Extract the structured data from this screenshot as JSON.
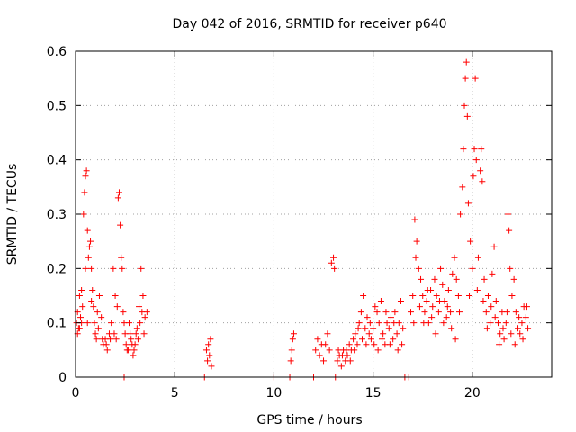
{
  "chart_data": {
    "type": "scatter",
    "title": "Day 042 of 2016, SRMTID for receiver p640",
    "xlabel": "GPS time / hours",
    "ylabel": "SRMTID / TECUs",
    "xlim": [
      0,
      24
    ],
    "ylim": [
      0,
      0.6
    ],
    "xticks": [
      0,
      5,
      10,
      15,
      20
    ],
    "xtick_labels": [
      "0",
      "5",
      "10",
      "15",
      "20"
    ],
    "yticks": [
      0,
      0.1,
      0.2,
      0.3,
      0.4,
      0.5,
      0.6
    ],
    "ytick_labels": [
      "0",
      "0.1",
      "0.2",
      "0.3",
      "0.4",
      "0.5",
      "0.6"
    ],
    "grid": true,
    "marker": "+",
    "color": "#ff0000",
    "series": [
      {
        "name": "SRMTID",
        "points": [
          [
            0.05,
            0.1
          ],
          [
            0.1,
            0.12
          ],
          [
            0.15,
            0.09
          ],
          [
            0.2,
            0.15
          ],
          [
            0.25,
            0.11
          ],
          [
            0.3,
            0.1
          ],
          [
            0.35,
            0.13
          ],
          [
            0.4,
            0.3
          ],
          [
            0.45,
            0.34
          ],
          [
            0.5,
            0.37
          ],
          [
            0.55,
            0.38
          ],
          [
            0.6,
            0.27
          ],
          [
            0.65,
            0.22
          ],
          [
            0.7,
            0.24
          ],
          [
            0.75,
            0.25
          ],
          [
            0.8,
            0.2
          ],
          [
            0.85,
            0.16
          ],
          [
            0.9,
            0.13
          ],
          [
            0.95,
            0.1
          ],
          [
            1.0,
            0.08
          ],
          [
            1.1,
            0.12
          ],
          [
            1.2,
            0.15
          ],
          [
            1.3,
            0.11
          ],
          [
            1.4,
            0.06
          ],
          [
            1.5,
            0.07
          ],
          [
            1.6,
            0.05
          ],
          [
            1.7,
            0.08
          ],
          [
            1.8,
            0.1
          ],
          [
            1.9,
            0.2
          ],
          [
            2.0,
            0.15
          ],
          [
            2.1,
            0.13
          ],
          [
            2.15,
            0.33
          ],
          [
            2.2,
            0.34
          ],
          [
            2.25,
            0.28
          ],
          [
            2.3,
            0.22
          ],
          [
            2.35,
            0.2
          ],
          [
            2.4,
            0.12
          ],
          [
            2.5,
            0.08
          ],
          [
            2.6,
            0.05
          ],
          [
            2.7,
            0.1
          ],
          [
            2.8,
            0.07
          ],
          [
            2.9,
            0.04
          ],
          [
            3.0,
            0.06
          ],
          [
            3.1,
            0.09
          ],
          [
            3.2,
            0.13
          ],
          [
            3.3,
            0.2
          ],
          [
            3.4,
            0.15
          ],
          [
            3.5,
            0.11
          ],
          [
            3.6,
            0.12
          ],
          [
            0.1,
            0.08
          ],
          [
            0.2,
            0.09
          ],
          [
            0.3,
            0.16
          ],
          [
            0.5,
            0.2
          ],
          [
            0.6,
            0.1
          ],
          [
            0.8,
            0.14
          ],
          [
            1.05,
            0.07
          ],
          [
            1.15,
            0.09
          ],
          [
            1.35,
            0.07
          ],
          [
            1.55,
            0.06
          ],
          [
            1.75,
            0.07
          ],
          [
            1.95,
            0.08
          ],
          [
            2.05,
            0.07
          ],
          [
            2.45,
            0.1
          ],
          [
            2.55,
            0.06
          ],
          [
            2.65,
            0.05
          ],
          [
            2.75,
            0.08
          ],
          [
            2.85,
            0.06
          ],
          [
            2.95,
            0.05
          ],
          [
            3.05,
            0.08
          ],
          [
            3.15,
            0.07
          ],
          [
            3.25,
            0.1
          ],
          [
            3.35,
            0.12
          ],
          [
            3.45,
            0.08
          ],
          [
            2.45,
            0.0
          ],
          [
            6.5,
            0.0
          ],
          [
            6.6,
            0.05
          ],
          [
            6.65,
            0.03
          ],
          [
            6.7,
            0.06
          ],
          [
            6.75,
            0.04
          ],
          [
            6.8,
            0.07
          ],
          [
            6.85,
            0.02
          ],
          [
            10.0,
            0.0
          ],
          [
            10.8,
            0.0
          ],
          [
            10.85,
            0.03
          ],
          [
            10.9,
            0.05
          ],
          [
            10.95,
            0.07
          ],
          [
            11.0,
            0.08
          ],
          [
            12.0,
            0.0
          ],
          [
            12.1,
            0.05
          ],
          [
            12.2,
            0.07
          ],
          [
            12.3,
            0.04
          ],
          [
            12.4,
            0.06
          ],
          [
            12.5,
            0.03
          ],
          [
            12.6,
            0.06
          ],
          [
            12.7,
            0.08
          ],
          [
            12.8,
            0.05
          ],
          [
            12.9,
            0.21
          ],
          [
            13.0,
            0.22
          ],
          [
            13.05,
            0.2
          ],
          [
            13.1,
            0.0
          ],
          [
            13.2,
            0.03
          ],
          [
            13.3,
            0.04
          ],
          [
            13.4,
            0.02
          ],
          [
            13.5,
            0.05
          ],
          [
            13.6,
            0.03
          ],
          [
            13.7,
            0.04
          ],
          [
            13.8,
            0.06
          ],
          [
            13.9,
            0.05
          ],
          [
            14.0,
            0.07
          ],
          [
            14.1,
            0.08
          ],
          [
            14.2,
            0.06
          ],
          [
            14.3,
            0.1
          ],
          [
            14.4,
            0.12
          ],
          [
            14.5,
            0.15
          ],
          [
            14.6,
            0.09
          ],
          [
            14.7,
            0.11
          ],
          [
            14.8,
            0.08
          ],
          [
            14.9,
            0.07
          ],
          [
            15.0,
            0.09
          ],
          [
            15.1,
            0.13
          ],
          [
            15.2,
            0.12
          ],
          [
            15.3,
            0.1
          ],
          [
            15.4,
            0.14
          ],
          [
            15.5,
            0.08
          ],
          [
            15.6,
            0.06
          ],
          [
            15.7,
            0.1
          ],
          [
            15.8,
            0.09
          ],
          [
            15.9,
            0.11
          ],
          [
            16.0,
            0.07
          ],
          [
            16.1,
            0.12
          ],
          [
            16.2,
            0.08
          ],
          [
            16.3,
            0.1
          ],
          [
            16.4,
            0.14
          ],
          [
            16.5,
            0.09
          ],
          [
            16.6,
            0.0
          ],
          [
            16.8,
            0.0
          ],
          [
            13.25,
            0.05
          ],
          [
            13.45,
            0.04
          ],
          [
            13.65,
            0.05
          ],
          [
            13.85,
            0.03
          ],
          [
            14.05,
            0.05
          ],
          [
            14.25,
            0.09
          ],
          [
            14.45,
            0.07
          ],
          [
            14.65,
            0.06
          ],
          [
            14.85,
            0.1
          ],
          [
            15.05,
            0.06
          ],
          [
            15.25,
            0.05
          ],
          [
            15.45,
            0.07
          ],
          [
            15.65,
            0.12
          ],
          [
            15.85,
            0.06
          ],
          [
            16.05,
            0.1
          ],
          [
            16.25,
            0.05
          ],
          [
            16.45,
            0.06
          ],
          [
            16.9,
            0.12
          ],
          [
            17.0,
            0.15
          ],
          [
            17.1,
            0.29
          ],
          [
            17.2,
            0.25
          ],
          [
            17.3,
            0.2
          ],
          [
            17.4,
            0.18
          ],
          [
            17.5,
            0.15
          ],
          [
            17.6,
            0.12
          ],
          [
            17.7,
            0.14
          ],
          [
            17.8,
            0.1
          ],
          [
            17.9,
            0.16
          ],
          [
            18.0,
            0.13
          ],
          [
            18.1,
            0.18
          ],
          [
            18.2,
            0.15
          ],
          [
            18.3,
            0.12
          ],
          [
            18.4,
            0.2
          ],
          [
            18.5,
            0.17
          ],
          [
            18.6,
            0.14
          ],
          [
            18.7,
            0.11
          ],
          [
            18.8,
            0.16
          ],
          [
            18.9,
            0.12
          ],
          [
            19.0,
            0.19
          ],
          [
            19.1,
            0.22
          ],
          [
            19.2,
            0.18
          ],
          [
            19.3,
            0.15
          ],
          [
            19.4,
            0.3
          ],
          [
            19.5,
            0.35
          ],
          [
            19.55,
            0.42
          ],
          [
            19.6,
            0.5
          ],
          [
            19.65,
            0.55
          ],
          [
            19.7,
            0.58
          ],
          [
            19.75,
            0.48
          ],
          [
            19.8,
            0.32
          ],
          [
            19.9,
            0.25
          ],
          [
            20.0,
            0.2
          ],
          [
            20.05,
            0.37
          ],
          [
            20.1,
            0.42
          ],
          [
            20.15,
            0.55
          ],
          [
            20.2,
            0.4
          ],
          [
            20.3,
            0.22
          ],
          [
            20.4,
            0.38
          ],
          [
            20.45,
            0.42
          ],
          [
            20.5,
            0.36
          ],
          [
            20.6,
            0.18
          ],
          [
            20.7,
            0.12
          ],
          [
            20.8,
            0.15
          ],
          [
            20.9,
            0.1
          ],
          [
            21.0,
            0.19
          ],
          [
            21.1,
            0.24
          ],
          [
            21.2,
            0.14
          ],
          [
            21.3,
            0.1
          ],
          [
            21.4,
            0.08
          ],
          [
            21.5,
            0.12
          ],
          [
            21.6,
            0.07
          ],
          [
            21.7,
            0.1
          ],
          [
            21.8,
            0.3
          ],
          [
            21.85,
            0.27
          ],
          [
            21.9,
            0.2
          ],
          [
            22.0,
            0.15
          ],
          [
            22.1,
            0.18
          ],
          [
            22.2,
            0.12
          ],
          [
            22.3,
            0.09
          ],
          [
            22.4,
            0.08
          ],
          [
            22.5,
            0.1
          ],
          [
            22.6,
            0.13
          ],
          [
            22.7,
            0.11
          ],
          [
            22.8,
            0.09
          ],
          [
            17.05,
            0.1
          ],
          [
            17.15,
            0.22
          ],
          [
            17.35,
            0.13
          ],
          [
            17.55,
            0.1
          ],
          [
            17.75,
            0.16
          ],
          [
            17.95,
            0.11
          ],
          [
            18.15,
            0.08
          ],
          [
            18.35,
            0.14
          ],
          [
            18.55,
            0.1
          ],
          [
            18.75,
            0.13
          ],
          [
            18.95,
            0.09
          ],
          [
            19.15,
            0.07
          ],
          [
            19.35,
            0.12
          ],
          [
            19.85,
            0.15
          ],
          [
            20.25,
            0.16
          ],
          [
            20.55,
            0.14
          ],
          [
            20.75,
            0.09
          ],
          [
            20.95,
            0.13
          ],
          [
            21.15,
            0.11
          ],
          [
            21.35,
            0.06
          ],
          [
            21.55,
            0.09
          ],
          [
            21.75,
            0.12
          ],
          [
            21.95,
            0.08
          ],
          [
            22.15,
            0.06
          ],
          [
            22.35,
            0.11
          ],
          [
            22.55,
            0.07
          ],
          [
            22.75,
            0.13
          ]
        ]
      }
    ]
  }
}
